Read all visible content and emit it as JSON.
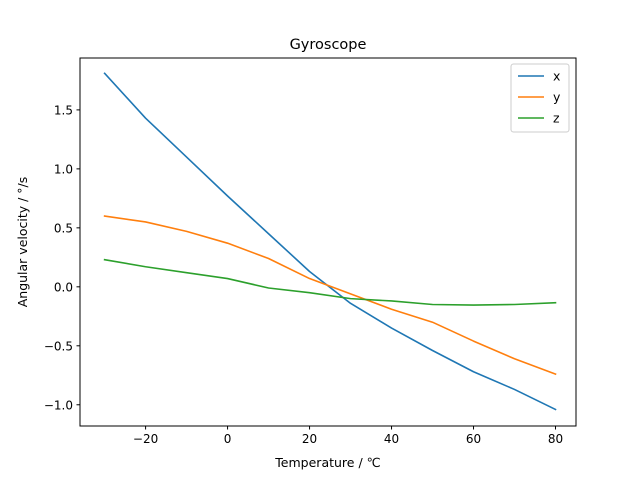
{
  "chart_data": {
    "type": "line",
    "title": "Gyroscope",
    "xlabel": "Temperature / ℃",
    "ylabel": "Angular velocity / °/s",
    "xlim": [
      -36,
      85
    ],
    "ylim": [
      -1.18,
      1.94
    ],
    "xticks": [
      -20,
      0,
      20,
      40,
      60,
      80
    ],
    "xtick_labels": [
      "−20",
      "0",
      "20",
      "40",
      "60",
      "80"
    ],
    "yticks": [
      -1.0,
      -0.5,
      0.0,
      0.5,
      1.0,
      1.5
    ],
    "ytick_labels": [
      "−1.0",
      "−0.5",
      "0.0",
      "0.5",
      "1.0",
      "1.5"
    ],
    "grid": false,
    "legend": "top-right",
    "x": [
      -30,
      -20,
      -10,
      0,
      10,
      20,
      30,
      40,
      50,
      60,
      70,
      80
    ],
    "series": [
      {
        "name": "x",
        "color": "#1f77b4",
        "values": [
          1.81,
          1.43,
          1.1,
          0.77,
          0.45,
          0.13,
          -0.14,
          -0.35,
          -0.54,
          -0.72,
          -0.87,
          -1.04
        ]
      },
      {
        "name": "y",
        "color": "#ff7f0e",
        "values": [
          0.6,
          0.55,
          0.47,
          0.37,
          0.24,
          0.07,
          -0.06,
          -0.19,
          -0.3,
          -0.46,
          -0.61,
          -0.74
        ]
      },
      {
        "name": "z",
        "color": "#2ca02c",
        "values": [
          0.23,
          0.17,
          0.12,
          0.07,
          -0.01,
          -0.05,
          -0.1,
          -0.12,
          -0.15,
          -0.155,
          -0.15,
          -0.135
        ]
      }
    ]
  }
}
